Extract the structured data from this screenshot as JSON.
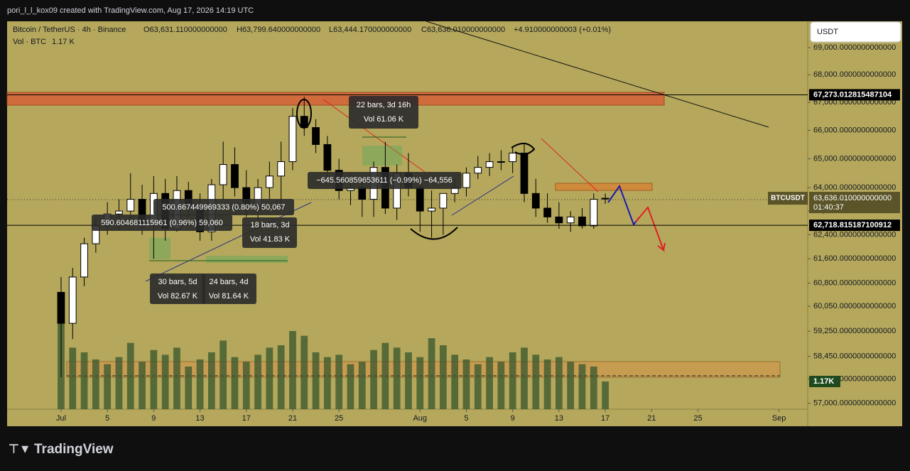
{
  "header": {
    "author_line": "pori_l_l_kox09 created with TradingView.com, Aug 17, 2026 14:19 UTC",
    "symbol": "Bitcoin / TetherUS · 4h · Binance",
    "open": "O63,631.110000000000",
    "high": "H63,799.640000000000",
    "low": "L63,444.170000000000",
    "close": "C63,636.010000000000",
    "change": "+4.910000000003 (+0.01%)",
    "volume_label": "Vol · BTC",
    "volume_value": "1.17 K"
  },
  "currency": "USDT",
  "footer": "TradingView",
  "chart_data": {
    "type": "candlestick",
    "log_scale": true,
    "up_color": "#ffffff",
    "down_color": "#000000",
    "volume_color": "#3f5a2f",
    "x": [
      0,
      1,
      2,
      3,
      4,
      5,
      6,
      7,
      8,
      9,
      10,
      11,
      12,
      13,
      14,
      15,
      16,
      17,
      18,
      19,
      20,
      21,
      22,
      23,
      24,
      25,
      26,
      27,
      28,
      29,
      30,
      31,
      32,
      33,
      34,
      35,
      36,
      37,
      38,
      39,
      40,
      41,
      42,
      43,
      44,
      45,
      46,
      47
    ],
    "open": [
      60500,
      59500,
      61000,
      62100,
      62700,
      63100,
      63200,
      63600,
      62700,
      63800,
      62600,
      63900,
      63400,
      62500,
      64100,
      64800,
      64000,
      63400,
      64000,
      64400,
      64900,
      66500,
      66100,
      65500,
      64600,
      63900,
      64000,
      63600,
      64700,
      63300,
      64500,
      64000,
      63200,
      63300,
      63800,
      64000,
      64500,
      64700,
      64900,
      64900,
      65200,
      63800,
      63300,
      63000,
      62800,
      63000,
      62700,
      63631
    ],
    "high": [
      61000,
      61300,
      62300,
      62900,
      63500,
      63600,
      64500,
      64100,
      64400,
      64300,
      64400,
      64200,
      63800,
      64300,
      65600,
      65400,
      64600,
      64300,
      64900,
      65600,
      66800,
      67200,
      66400,
      65800,
      65000,
      64500,
      64400,
      64900,
      65600,
      64800,
      65200,
      64300,
      63900,
      63700,
      64300,
      64700,
      65100,
      65200,
      65300,
      65400,
      65500,
      64300,
      63800,
      63500,
      63200,
      63300,
      63800,
      63800
    ],
    "low": [
      57800,
      59000,
      60700,
      61800,
      62400,
      62600,
      62800,
      62400,
      61600,
      62200,
      62500,
      63000,
      62200,
      62200,
      63600,
      63700,
      63000,
      62900,
      63600,
      63400,
      64600,
      65800,
      65200,
      64300,
      63600,
      63400,
      63000,
      63000,
      63100,
      62900,
      63700,
      62500,
      62300,
      62400,
      63500,
      63700,
      64300,
      64400,
      64600,
      64500,
      63500,
      63000,
      62800,
      62600,
      62500,
      62600,
      62600,
      63444
    ],
    "close": [
      59500,
      61000,
      62100,
      62700,
      63100,
      63200,
      63600,
      62700,
      63800,
      62600,
      63900,
      63400,
      62500,
      64100,
      64800,
      64000,
      63400,
      64000,
      64400,
      64900,
      66500,
      66100,
      65500,
      64600,
      63900,
      64000,
      63600,
      64700,
      63300,
      64500,
      64000,
      63200,
      63300,
      63800,
      64000,
      64500,
      64700,
      64900,
      64900,
      65200,
      63800,
      63300,
      63000,
      62800,
      63000,
      62700,
      63600,
      63636
    ],
    "volume": [
      3.9,
      2.6,
      2.4,
      2.1,
      1.9,
      2.2,
      2.8,
      2.0,
      2.5,
      2.3,
      2.6,
      1.8,
      2.1,
      2.4,
      2.9,
      2.2,
      2.0,
      2.3,
      2.6,
      2.7,
      3.3,
      3.1,
      2.4,
      2.2,
      2.3,
      1.9,
      2.0,
      2.5,
      2.8,
      2.6,
      2.4,
      2.2,
      3.0,
      2.7,
      2.3,
      2.1,
      1.9,
      2.2,
      2.0,
      2.4,
      2.6,
      2.3,
      2.1,
      2.2,
      2.0,
      1.9,
      1.8,
      1.17
    ],
    "volume_ylim": [
      0,
      12
    ],
    "xlim": [
      -4.66,
      64.48
    ],
    "ylim": [
      56818,
      69982
    ],
    "xticks": [
      {
        "value": 0,
        "label": "Jul"
      },
      {
        "value": 4,
        "label": "5"
      },
      {
        "value": 8,
        "label": "9"
      },
      {
        "value": 12,
        "label": "13"
      },
      {
        "value": 16,
        "label": "17"
      },
      {
        "value": 20,
        "label": "21"
      },
      {
        "value": 24,
        "label": "25"
      },
      {
        "value": 31,
        "label": "Aug"
      },
      {
        "value": 35,
        "label": "5"
      },
      {
        "value": 39,
        "label": "9"
      },
      {
        "value": 43,
        "label": "13"
      },
      {
        "value": 47,
        "label": "17"
      },
      {
        "value": 51,
        "label": "21"
      },
      {
        "value": 55,
        "label": "25"
      },
      {
        "value": 62,
        "label": "Sep"
      }
    ],
    "yticks": [
      {
        "value": 69000,
        "label": "69,000.0000000000000"
      },
      {
        "value": 68000,
        "label": "68,000.0000000000000"
      },
      {
        "value": 67000,
        "label": "67,000.0000000000000"
      },
      {
        "value": 66000,
        "label": "66,000.0000000000000"
      },
      {
        "value": 65000,
        "label": "65,000.0000000000000"
      },
      {
        "value": 64000,
        "label": "64,000.0000000000000"
      },
      {
        "value": 63200,
        "label": "63,200.0000000000000"
      },
      {
        "value": 62400,
        "label": "62,400.0000000000000"
      },
      {
        "value": 61600,
        "label": "61,600.0000000000000"
      },
      {
        "value": 60800,
        "label": "60,800.0000000000000"
      },
      {
        "value": 60050,
        "label": "60,050.0000000000000"
      },
      {
        "value": 59250,
        "label": "59,250.0000000000000"
      },
      {
        "value": 58450,
        "label": "58,450.0000000000000"
      },
      {
        "value": 57750,
        "label": "57,750.0000000000000"
      },
      {
        "value": 57000,
        "label": "57,000.0000000000000"
      }
    ],
    "price_lines": [
      {
        "value": 67273.0128154871,
        "label": "67,273.012815487104"
      },
      {
        "value": 62718.81518710091,
        "label": "62,718.815187100912"
      }
    ],
    "last_price": {
      "value": 63636.01,
      "label": "63,636.010000000000",
      "symbol": "BTCUSDT",
      "countdown": "01:40:37"
    },
    "last_volume_label": "1.17K",
    "measures": [
      {
        "lines": [
          "22 bars, 3d 16h",
          "Vol 61.06 K"
        ]
      },
      {
        "lines": [
          "−645.560859653611 (−0.99%) −64,556"
        ]
      },
      {
        "lines": [
          "500.667449969333 (0.80%) 50,067"
        ]
      },
      {
        "lines": [
          "590.604681115961 (0.96%) 59,060"
        ]
      },
      {
        "lines": [
          "18 bars, 3d",
          "Vol 41.83 K"
        ]
      },
      {
        "lines": [
          "30 bars, 5d",
          "Vol 82.67 K"
        ]
      },
      {
        "lines": [
          "24 bars, 4d",
          "Vol 81.64 K"
        ]
      }
    ]
  }
}
